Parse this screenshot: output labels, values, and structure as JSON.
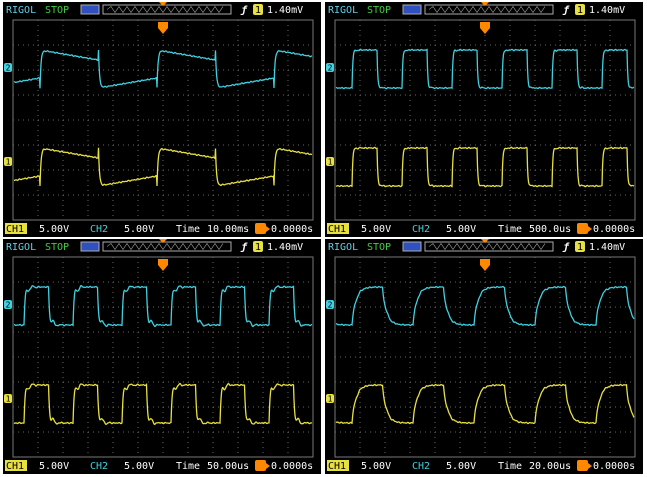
{
  "screens": [
    {
      "brand": "RIGOL",
      "status": "STOP",
      "trigger_channel": "1",
      "trigger_level": "1.40mV",
      "ch2_marker": "2",
      "ch1_marker": "1",
      "ch1_label": "CH1",
      "ch1_scale": "5.00V",
      "ch2_label": "CH2",
      "ch2_scale": "5.00V",
      "time_label": "Time",
      "timebase": "10.00ms",
      "trigger_offset": "0.0000s"
    },
    {
      "brand": "RIGOL",
      "status": "STOP",
      "trigger_channel": "1",
      "trigger_level": "1.40mV",
      "ch2_marker": "2",
      "ch1_marker": "1",
      "ch1_label": "CH1",
      "ch1_scale": "5.00V",
      "ch2_label": "CH2",
      "ch2_scale": "5.00V",
      "time_label": "Time",
      "timebase": "500.0us",
      "trigger_offset": "0.0000s"
    },
    {
      "brand": "RIGOL",
      "status": "STOP",
      "trigger_channel": "1",
      "trigger_level": "1.40mV",
      "ch2_marker": "2",
      "ch1_marker": "1",
      "ch1_label": "CH1",
      "ch1_scale": "5.00V",
      "ch2_label": "CH2",
      "ch2_scale": "5.00V",
      "time_label": "Time",
      "timebase": "50.00us",
      "trigger_offset": "0.0000s"
    },
    {
      "brand": "RIGOL",
      "status": "STOP",
      "trigger_channel": "1",
      "trigger_level": "1.40mV",
      "ch2_marker": "2",
      "ch1_marker": "1",
      "ch1_label": "CH1",
      "ch1_scale": "5.00V",
      "ch2_label": "CH2",
      "ch2_scale": "5.00V",
      "time_label": "Time",
      "timebase": "20.00us",
      "trigger_offset": "0.0000s"
    }
  ]
}
